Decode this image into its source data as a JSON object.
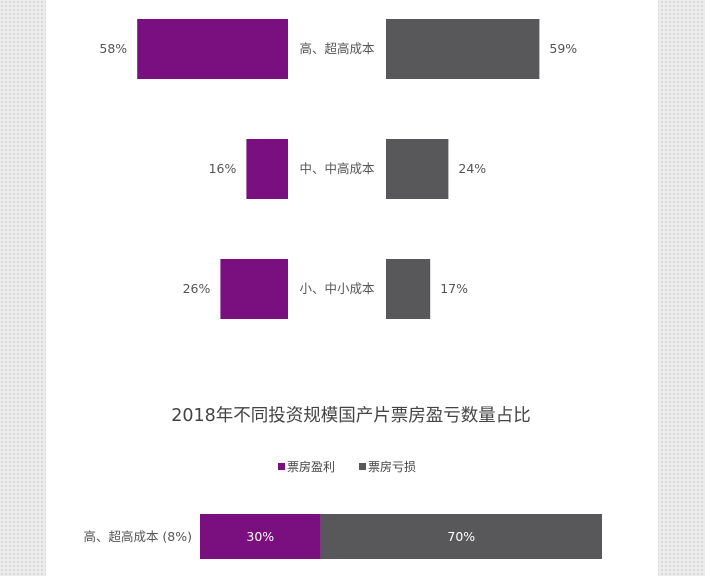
{
  "colors": {
    "profit": "#7a0f7f",
    "loss": "#58585a"
  },
  "chart_data": [
    {
      "type": "bar",
      "orientation": "diverging",
      "categories": [
        "高、超高成本",
        "中、中高成本",
        "小、中小成本"
      ],
      "series": [
        {
          "values": [
            58,
            16,
            26
          ]
        },
        {
          "values": [
            59,
            24,
            17
          ]
        }
      ],
      "value_labels": {
        "left": [
          "58%",
          "16%",
          "26%"
        ],
        "right": [
          "59%",
          "24%",
          "17%"
        ]
      }
    },
    {
      "type": "bar",
      "orientation": "stacked-horizontal",
      "title": "2018年不同投资规模国产片票房盈亏数量占比",
      "legend": {
        "position": "top",
        "items": [
          "票房盈利",
          "票房亏损"
        ]
      },
      "categories": [
        "高、超高成本 (8%)"
      ],
      "series": [
        {
          "name": "票房盈利",
          "values": [
            30
          ],
          "label": "30%"
        },
        {
          "name": "票房亏损",
          "values": [
            70
          ],
          "label": "70%"
        }
      ]
    }
  ]
}
